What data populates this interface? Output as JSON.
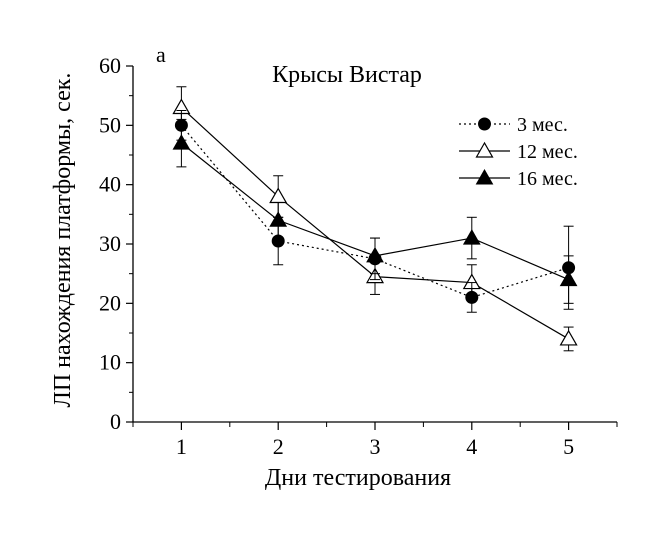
{
  "chart_data": {
    "type": "line",
    "panel_label": "a",
    "title": "Крысы Вистар",
    "xlabel": "Дни тестирования",
    "ylabel": "ЛП нахождения платформы, сек.",
    "x": [
      1,
      2,
      3,
      4,
      5
    ],
    "x_ticks": [
      "1",
      "2",
      "3",
      "4",
      "5"
    ],
    "y_ticks": [
      "0",
      "10",
      "20",
      "30",
      "40",
      "50",
      "60"
    ],
    "xlim": [
      0.5,
      5.5
    ],
    "ylim": [
      0,
      60
    ],
    "grid": false,
    "legend_position": "top-right",
    "series": [
      {
        "name": "3 мес.",
        "marker": "filled-circle",
        "line_style": "dotted",
        "color": "#000000",
        "values": [
          50,
          30.5,
          27.5,
          21,
          26
        ],
        "errors": [
          2.5,
          4,
          3.5,
          2.5,
          7
        ]
      },
      {
        "name": "12 мес.",
        "marker": "open-triangle",
        "line_style": "solid",
        "color": "#000000",
        "values": [
          53,
          38,
          24.5,
          23.5,
          14
        ],
        "errors": [
          3.5,
          3.5,
          3,
          3,
          2
        ]
      },
      {
        "name": "16 мес.",
        "marker": "filled-triangle",
        "line_style": "solid",
        "color": "#000000",
        "values": [
          47,
          34,
          28,
          31,
          24
        ],
        "errors": [
          4,
          3,
          3,
          3.5,
          4
        ]
      }
    ]
  }
}
